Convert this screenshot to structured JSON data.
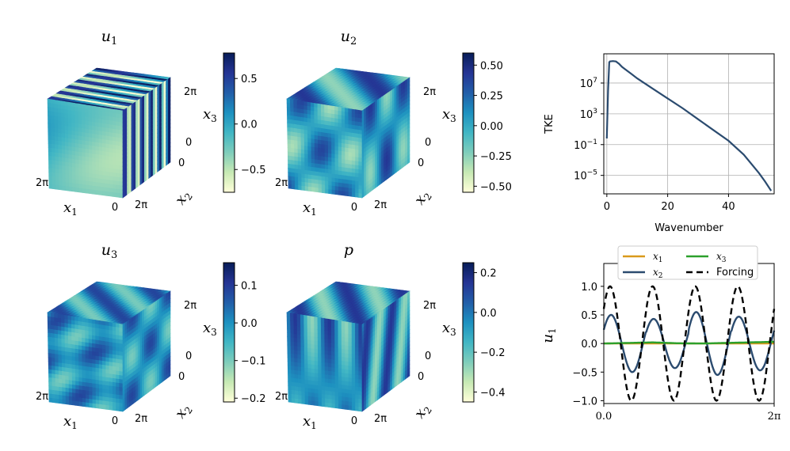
{
  "panels": [
    {
      "title": "u",
      "sub": "1"
    },
    {
      "title": "u",
      "sub": "2"
    },
    {
      "title": "u",
      "sub": "3"
    },
    {
      "title": "p",
      "sub": ""
    }
  ],
  "cube_labels": {
    "x1": "x",
    "x1_sub": "1",
    "x2": "x",
    "x2_sub": "2",
    "x3": "x",
    "x3_sub": "3",
    "two_pi": "2π",
    "zero": "0"
  },
  "colormap": {
    "name": "YlGnBu",
    "stops": [
      "#ffffd9",
      "#c7e9b4",
      "#7fcdbb",
      "#41b6c4",
      "#1d91c0",
      "#225ea8",
      "#253494",
      "#081d58"
    ]
  },
  "chart_data": [
    {
      "type": "colorbar",
      "panel": "u_1",
      "tick_labels": [
        "0.5",
        "0.0",
        "−0.5"
      ],
      "ticks": [
        0.5,
        0.0,
        -0.5
      ],
      "range": [
        -0.75,
        0.78
      ]
    },
    {
      "type": "colorbar",
      "panel": "u_2",
      "tick_labels": [
        "0.50",
        "0.25",
        "0.00",
        "−0.25",
        "−0.50"
      ],
      "ticks": [
        0.5,
        0.25,
        0.0,
        -0.25,
        -0.5
      ],
      "range": [
        -0.55,
        0.6
      ]
    },
    {
      "type": "colorbar",
      "panel": "u_3",
      "tick_labels": [
        "0.1",
        "0.0",
        "−0.1",
        "−0.2"
      ],
      "ticks": [
        0.1,
        0.0,
        -0.1,
        -0.2
      ],
      "range": [
        -0.21,
        0.16
      ]
    },
    {
      "type": "colorbar",
      "panel": "p",
      "tick_labels": [
        "0.2",
        "0.0",
        "−0.2",
        "−0.4"
      ],
      "ticks": [
        0.2,
        0.0,
        -0.2,
        -0.4
      ],
      "range": [
        -0.45,
        0.25
      ]
    },
    {
      "type": "line",
      "scale_y": "log",
      "xlabel": "Wavenumber",
      "ylabel": "TKE",
      "xlim": [
        -1,
        55
      ],
      "ylim_log10": [
        -7.4,
        10.8
      ],
      "xticks": [
        0,
        20,
        40
      ],
      "xtick_labels": [
        "0",
        "20",
        "40"
      ],
      "yticks_log10": [
        7,
        3,
        -1,
        -5
      ],
      "ytick_labels": [
        {
          "base": "10",
          "exp": "7"
        },
        {
          "base": "10",
          "exp": "3"
        },
        {
          "base": "10",
          "exp": "−1"
        },
        {
          "base": "10",
          "exp": "−5"
        }
      ],
      "grid": true,
      "color": "#2b4b6f",
      "series": [
        {
          "x": [
            0,
            0.4,
            0.8,
            1,
            2,
            3,
            4,
            5,
            6,
            8,
            10,
            15,
            20,
            25,
            30,
            35,
            40,
            45,
            50,
            52,
            54
          ],
          "log10_y": [
            -0.2,
            6,
            9.7,
            9.8,
            9.85,
            9.8,
            9.5,
            9.1,
            8.8,
            8.2,
            7.6,
            6.3,
            5.0,
            3.7,
            2.3,
            0.9,
            -0.5,
            -2.3,
            -4.7,
            -5.8,
            -7.0
          ]
        }
      ]
    },
    {
      "type": "line",
      "xlabel": "",
      "ylabel": "u",
      "ylabel_sub": "1",
      "xlim": [
        0,
        6.2832
      ],
      "ylim": [
        -1.05,
        1.4
      ],
      "xticks": [
        0,
        6.2832
      ],
      "xtick_labels": [
        "0.0",
        "2π"
      ],
      "yticks": [
        1.0,
        0.5,
        0.0,
        -0.5,
        -1.0
      ],
      "ytick_labels": [
        "1.0",
        "0.5",
        "0.0",
        "−0.5",
        "−1.0"
      ],
      "legend": {
        "position": "top",
        "columns": 2
      },
      "series": [
        {
          "name": "x₁",
          "label": "x",
          "sub": "1",
          "color": "#d99a1c",
          "dash": "",
          "kind": "flat",
          "values": [
            0.0
          ]
        },
        {
          "name": "x₂",
          "label": "x",
          "sub": "2",
          "color": "#2b4b6f",
          "dash": "",
          "kind": "sine",
          "amplitudes": [
            0.5,
            0.43,
            0.55,
            0.47
          ],
          "cycles": 4,
          "phase_shift": 0.15
        },
        {
          "name": "x₃",
          "label": "x",
          "sub": "3",
          "color": "#2ca02c",
          "dash": "",
          "kind": "flat",
          "values": [
            0.0,
            0.01,
            0.02,
            0.005,
            0.0,
            0.01,
            0.02,
            0.03
          ]
        },
        {
          "name": "Forcing",
          "label": "Forcing",
          "sub": "",
          "color": "#000000",
          "dash": "8,5",
          "kind": "sine",
          "amplitudes": [
            1.0,
            1.0,
            1.0,
            1.0
          ],
          "cycles": 4,
          "phase_shift": 0.0
        }
      ]
    }
  ]
}
